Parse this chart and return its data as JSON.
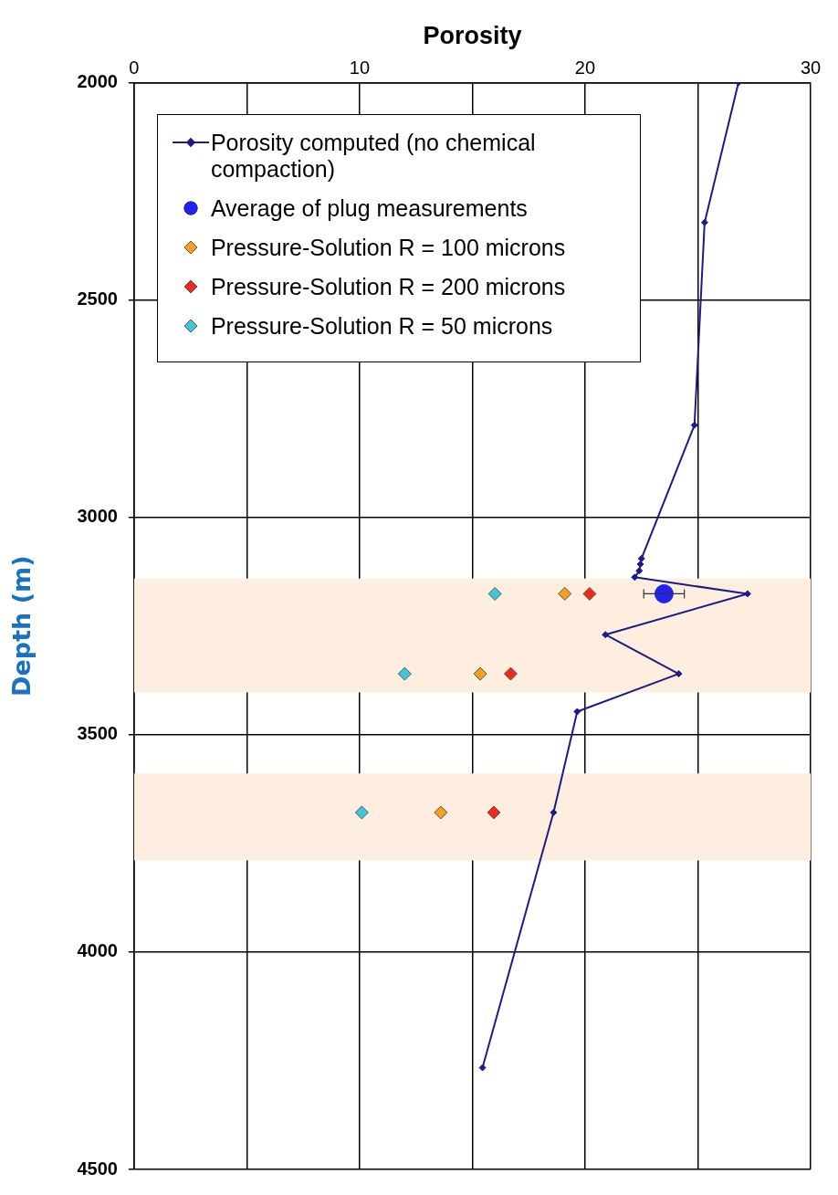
{
  "chart_data": {
    "type": "line",
    "xlabel": "Porosity",
    "ylabel": "Depth (m)",
    "xlim": [
      0,
      30
    ],
    "xticks": [
      0,
      {
        "value": 5,
        "label": null
      },
      10,
      {
        "value": 15,
        "label": null
      },
      20,
      {
        "value": 25,
        "label": null
      },
      30
    ],
    "ylim": [
      4500,
      2000
    ],
    "yticks": [
      2000,
      2500,
      3000,
      3500,
      4000,
      4500
    ],
    "grid": true,
    "legend": "top left",
    "bands": [
      {
        "axis": "y",
        "from": 3141,
        "to": 3403,
        "color": "#fdeee0"
      },
      {
        "axis": "y",
        "from": 3589,
        "to": 3789,
        "color": "#fdeee0"
      }
    ],
    "series": [
      {
        "name": "Porosity computed (no chemical compaction)",
        "type": "line",
        "marker": "diamond",
        "color": "#1c1c84",
        "x": [
          26.8,
          25.3,
          24.85,
          22.5,
          22.45,
          22.4,
          22.2,
          27.2,
          20.9,
          24.15,
          19.65,
          18.6,
          15.45
        ],
        "values": [
          2000,
          2322,
          2788,
          3095,
          3108,
          3123,
          3138,
          3176,
          3270,
          3360,
          3447,
          3679,
          4266
        ]
      },
      {
        "name": "Average of plug measurements",
        "type": "scatter",
        "marker": "circle",
        "color": "#2222ee",
        "x": [
          23.5
        ],
        "values": [
          3176
        ],
        "xerrors": [
          0.9
        ]
      },
      {
        "name": "Pressure-Solution R = 100 microns",
        "type": "scatter",
        "marker": "diamond",
        "color": "#f5a020",
        "x": [
          19.1,
          15.35,
          13.6
        ],
        "values": [
          3176,
          3360,
          3679
        ]
      },
      {
        "name": "Pressure-Solution R = 200 microns",
        "type": "scatter",
        "marker": "diamond",
        "color": "#ee2a1a",
        "x": [
          20.2,
          16.7,
          15.95
        ],
        "values": [
          3176,
          3360,
          3679
        ]
      },
      {
        "name": "Pressure-Solution R = 50 microns",
        "type": "scatter",
        "marker": "diamond",
        "color": "#3cc8d8",
        "x": [
          16.0,
          12.0,
          10.1
        ],
        "values": [
          3176,
          3360,
          3679
        ]
      }
    ]
  }
}
